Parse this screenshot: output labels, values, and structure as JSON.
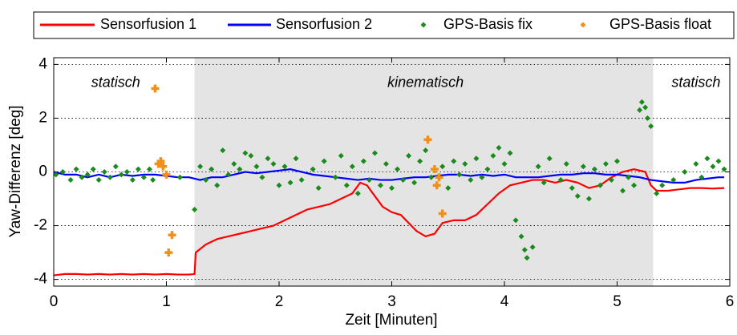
{
  "chart_data": {
    "type": "line",
    "xlabel": "Zeit [Minuten]",
    "ylabel": "Yaw-Differenz [deg]",
    "xlim": [
      0,
      6
    ],
    "ylim": [
      -4.25,
      4.25
    ],
    "xticks": [
      0,
      1,
      2,
      3,
      4,
      5,
      6
    ],
    "yticks": [
      -4,
      -2,
      0,
      2,
      4
    ],
    "grid": "y",
    "legend": "top",
    "shaded_regions": [
      {
        "x": [
          1.25,
          5.32
        ],
        "color": "#e4e4e4"
      }
    ],
    "annotations": [
      {
        "text": "statisch",
        "x": 0.55,
        "y": 3.3
      },
      {
        "text": "kinematisch",
        "x": 3.3,
        "y": 3.3
      },
      {
        "text": "statisch",
        "x": 5.7,
        "y": 3.3
      }
    ],
    "series": [
      {
        "name": "Sensorfusion 1",
        "type": "line",
        "color": "#ff0000",
        "x": [
          0,
          0.1,
          0.2,
          0.3,
          0.4,
          0.5,
          0.6,
          0.7,
          0.8,
          0.9,
          1.0,
          1.1,
          1.2,
          1.25,
          1.26,
          1.35,
          1.45,
          1.55,
          1.65,
          1.75,
          1.85,
          1.95,
          2.05,
          2.15,
          2.25,
          2.35,
          2.45,
          2.55,
          2.65,
          2.72,
          2.78,
          2.85,
          2.92,
          3.0,
          3.08,
          3.15,
          3.22,
          3.3,
          3.38,
          3.45,
          3.55,
          3.65,
          3.75,
          3.85,
          3.95,
          4.05,
          4.15,
          4.25,
          4.35,
          4.45,
          4.55,
          4.65,
          4.75,
          4.85,
          4.95,
          5.05,
          5.15,
          5.25,
          5.3,
          5.35,
          5.45,
          5.55,
          5.65,
          5.75,
          5.85,
          5.95
        ],
        "values": [
          -3.85,
          -3.8,
          -3.8,
          -3.82,
          -3.8,
          -3.82,
          -3.8,
          -3.82,
          -3.8,
          -3.82,
          -3.8,
          -3.82,
          -3.82,
          -3.8,
          -3.0,
          -2.7,
          -2.5,
          -2.4,
          -2.3,
          -2.2,
          -2.1,
          -2.0,
          -1.8,
          -1.6,
          -1.4,
          -1.3,
          -1.2,
          -1.0,
          -0.8,
          -0.4,
          -0.5,
          -0.9,
          -1.3,
          -1.5,
          -1.6,
          -1.9,
          -2.2,
          -2.4,
          -2.3,
          -1.9,
          -1.8,
          -1.8,
          -1.6,
          -1.2,
          -0.8,
          -0.5,
          -0.4,
          -0.3,
          -0.3,
          -0.4,
          -0.3,
          -0.4,
          -0.6,
          -0.5,
          -0.2,
          0.0,
          0.1,
          0.0,
          -0.5,
          -0.7,
          -0.7,
          -0.65,
          -0.6,
          -0.6,
          -0.62,
          -0.6
        ]
      },
      {
        "name": "Sensorfusion 2",
        "type": "line",
        "color": "#0000ff",
        "x": [
          0,
          0.1,
          0.2,
          0.3,
          0.4,
          0.5,
          0.6,
          0.7,
          0.8,
          0.9,
          1.0,
          1.1,
          1.2,
          1.3,
          1.4,
          1.5,
          1.6,
          1.7,
          1.8,
          1.9,
          2.0,
          2.1,
          2.2,
          2.3,
          2.4,
          2.5,
          2.6,
          2.7,
          2.8,
          2.9,
          3.0,
          3.1,
          3.2,
          3.3,
          3.4,
          3.5,
          3.6,
          3.7,
          3.8,
          3.9,
          4.0,
          4.1,
          4.2,
          4.3,
          4.4,
          4.5,
          4.6,
          4.7,
          4.8,
          4.9,
          5.0,
          5.1,
          5.2,
          5.3,
          5.4,
          5.5,
          5.6,
          5.7,
          5.8,
          5.9,
          5.95
        ],
        "values": [
          0,
          -0.1,
          -0.1,
          -0.2,
          -0.1,
          -0.2,
          -0.1,
          -0.15,
          -0.1,
          -0.1,
          -0.15,
          -0.2,
          -0.2,
          -0.3,
          -0.2,
          -0.2,
          -0.1,
          0.0,
          -0.05,
          0.0,
          0.05,
          0.1,
          0.0,
          -0.1,
          -0.15,
          -0.2,
          -0.25,
          -0.3,
          -0.25,
          -0.3,
          -0.3,
          -0.25,
          -0.2,
          -0.2,
          -0.15,
          -0.1,
          -0.1,
          -0.15,
          -0.1,
          -0.15,
          -0.1,
          -0.2,
          -0.2,
          -0.2,
          -0.15,
          -0.1,
          -0.1,
          -0.05,
          -0.05,
          -0.1,
          -0.1,
          -0.15,
          -0.2,
          -0.3,
          -0.35,
          -0.4,
          -0.4,
          -0.3,
          -0.25,
          -0.2,
          -0.2
        ]
      },
      {
        "name": "GPS-Basis fix",
        "type": "scatter",
        "color": "#1a8a1a",
        "x": [
          0.02,
          0.08,
          0.15,
          0.2,
          0.25,
          0.3,
          0.35,
          0.4,
          0.45,
          0.5,
          0.55,
          0.6,
          0.65,
          0.7,
          0.75,
          0.8,
          0.85,
          0.88,
          1.12,
          1.25,
          1.3,
          1.35,
          1.4,
          1.45,
          1.5,
          1.55,
          1.6,
          1.65,
          1.7,
          1.75,
          1.8,
          1.85,
          1.9,
          1.95,
          2.0,
          2.05,
          2.1,
          2.15,
          2.2,
          2.3,
          2.35,
          2.4,
          2.5,
          2.55,
          2.6,
          2.65,
          2.7,
          2.75,
          2.8,
          2.85,
          2.9,
          2.95,
          3.0,
          3.05,
          3.1,
          3.15,
          3.2,
          3.25,
          3.3,
          3.35,
          3.45,
          3.5,
          3.55,
          3.6,
          3.65,
          3.7,
          3.75,
          3.8,
          3.85,
          3.9,
          3.95,
          4.0,
          4.05,
          4.1,
          4.15,
          4.18,
          4.2,
          4.25,
          4.3,
          4.35,
          4.4,
          4.5,
          4.55,
          4.6,
          4.65,
          4.7,
          4.75,
          4.8,
          4.85,
          4.9,
          4.95,
          5.0,
          5.05,
          5.1,
          5.15,
          5.2,
          5.22,
          5.25,
          5.27,
          5.3,
          5.35,
          5.4,
          5.5,
          5.6,
          5.7,
          5.75,
          5.8,
          5.85,
          5.9,
          5.95
        ],
        "values": [
          -0.1,
          0,
          -0.3,
          0.1,
          -0.2,
          -0.1,
          0.1,
          -0.3,
          0,
          -0.2,
          0.2,
          -0.1,
          0,
          -0.3,
          0.1,
          -0.2,
          0.1,
          -0.3,
          -0.2,
          -1.4,
          0.2,
          -0.3,
          0.1,
          -0.5,
          0.8,
          -0.1,
          0.3,
          0.1,
          0.7,
          0.6,
          0.2,
          -0.2,
          0.5,
          0.3,
          -0.5,
          0.2,
          -0.4,
          0.5,
          -0.3,
          0.1,
          -0.6,
          0.4,
          -0.2,
          0.6,
          -0.5,
          0.2,
          -0.8,
          0.4,
          -0.3,
          0.7,
          -0.5,
          0.3,
          -0.6,
          0.1,
          -0.3,
          0.6,
          -0.4,
          0.4,
          0.8,
          -0.2,
          0.2,
          -0.6,
          0.4,
          -0.1,
          0.3,
          -0.3,
          0.5,
          -0.2,
          0.1,
          0.6,
          0.9,
          0.3,
          0.7,
          -1.8,
          -2.4,
          -2.9,
          -3.2,
          -2.8,
          0.2,
          -0.4,
          0.5,
          -0.3,
          0.3,
          -0.6,
          -0.9,
          0.2,
          -1.0,
          0.1,
          -0.5,
          0.3,
          -0.3,
          0.4,
          -0.7,
          -0.2,
          -0.5,
          2.3,
          2.6,
          2.4,
          2.0,
          1.7,
          -0.8,
          -0.5,
          -0.3,
          0,
          0.3,
          -0.2,
          0.5,
          0.2,
          0.4,
          0.1
        ]
      },
      {
        "name": "GPS-Basis float",
        "type": "scatter",
        "color": "#f0901a",
        "x": [
          0.9,
          0.93,
          0.95,
          0.97,
          1.0,
          1.05,
          1.02,
          3.32,
          3.38,
          3.42,
          3.4,
          3.45
        ],
        "values": [
          3.1,
          0.3,
          0.4,
          0.2,
          -0.1,
          -2.35,
          -3.0,
          1.2,
          0.1,
          -0.2,
          -0.5,
          -1.55
        ]
      }
    ]
  }
}
